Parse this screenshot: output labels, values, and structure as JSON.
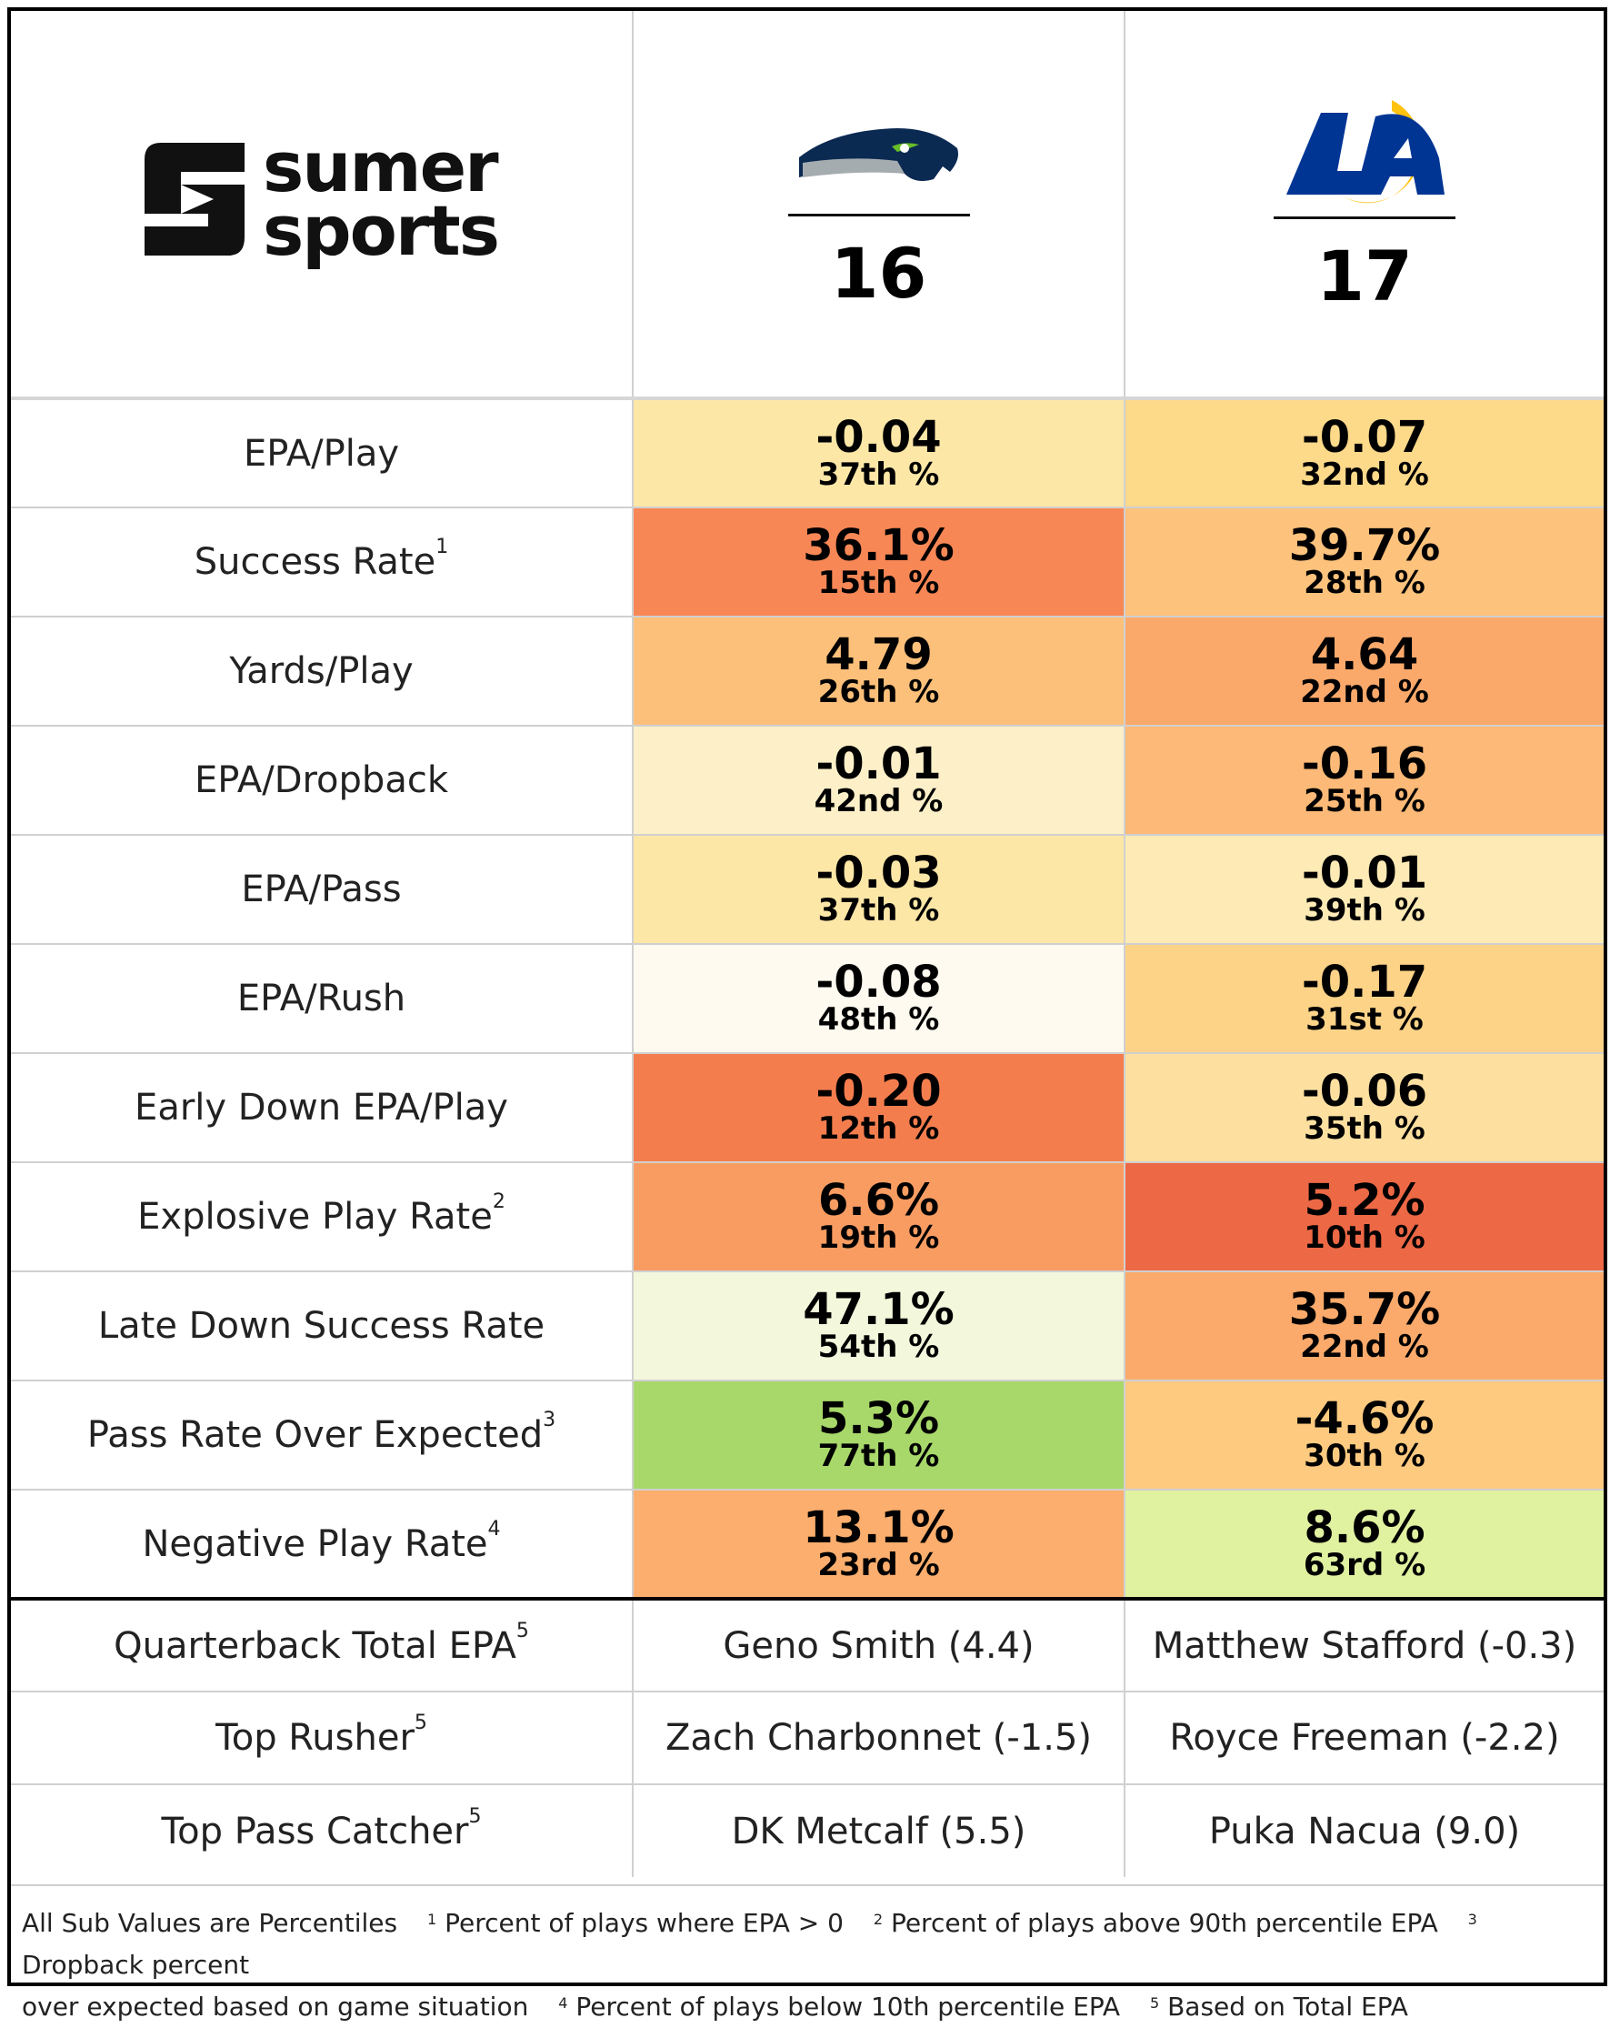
{
  "brand": {
    "line1": "sumer",
    "line2": "sports"
  },
  "teams": [
    {
      "icon": "seahawks-logo-icon",
      "score": "16"
    },
    {
      "icon": "rams-logo-icon",
      "score": "17"
    }
  ],
  "stats": [
    {
      "label": "EPA/Play",
      "sup": "",
      "a_val": "-0.04",
      "a_pct": "37th %",
      "a_color": "#fde7a7",
      "b_val": "-0.07",
      "b_pct": "32nd %",
      "b_color": "#fdd98a"
    },
    {
      "label": "Success Rate",
      "sup": "1",
      "a_val": "36.1%",
      "a_pct": "15th %",
      "a_color": "#f88756",
      "b_val": "39.7%",
      "b_pct": "28th %",
      "b_color": "#fdc27c"
    },
    {
      "label": "Yards/Play",
      "sup": "",
      "a_val": "4.79",
      "a_pct": "26th %",
      "a_color": "#fcc07a",
      "b_val": "4.64",
      "b_pct": "22nd %",
      "b_color": "#fba96b"
    },
    {
      "label": "EPA/Dropback",
      "sup": "",
      "a_val": "-0.01",
      "a_pct": "42nd %",
      "a_color": "#fdf0c9",
      "b_val": "-0.16",
      "b_pct": "25th %",
      "b_color": "#fcb977"
    },
    {
      "label": "EPA/Pass",
      "sup": "",
      "a_val": "-0.03",
      "a_pct": "37th %",
      "a_color": "#fde7a7",
      "b_val": "-0.01",
      "b_pct": "39th %",
      "b_color": "#fdeab5"
    },
    {
      "label": "EPA/Rush",
      "sup": "",
      "a_val": "-0.08",
      "a_pct": "48th %",
      "a_color": "#fffaf0",
      "b_val": "-0.17",
      "b_pct": "31st %",
      "b_color": "#fdd388"
    },
    {
      "label": "Early Down EPA/Play",
      "sup": "",
      "a_val": "-0.20",
      "a_pct": "12th %",
      "a_color": "#f47d4e",
      "b_val": "-0.06",
      "b_pct": "35th %",
      "b_color": "#fde0a0"
    },
    {
      "label": "Explosive Play Rate",
      "sup": "2",
      "a_val": "6.6%",
      "a_pct": "19th %",
      "a_color": "#f99c62",
      "b_val": "5.2%",
      "b_pct": "10th %",
      "b_color": "#ed6845"
    },
    {
      "label": "Late Down Success Rate",
      "sup": "",
      "a_val": "47.1%",
      "a_pct": "54th %",
      "a_color": "#f3f8dc",
      "b_val": "35.7%",
      "b_pct": "22nd %",
      "b_color": "#fbaa6b"
    },
    {
      "label": "Pass Rate Over Expected",
      "sup": "3",
      "a_val": "5.3%",
      "a_pct": "77th %",
      "a_color": "#a8d86a",
      "b_val": "-4.6%",
      "b_pct": "30th %",
      "b_color": "#fdca80"
    },
    {
      "label": "Negative Play Rate",
      "sup": "4",
      "a_val": "13.1%",
      "a_pct": "23rd %",
      "a_color": "#fbae6d",
      "b_val": "8.6%",
      "b_pct": "63rd %",
      "b_color": "#e0f1a0"
    }
  ],
  "players": [
    {
      "label": "Quarterback Total EPA",
      "sup": "5",
      "a": "Geno Smith (4.4)",
      "b": "Matthew Stafford (-0.3)"
    },
    {
      "label": "Top Rusher",
      "sup": "5",
      "a": "Zach Charbonnet (-1.5)",
      "b": "Royce Freeman (-2.2)"
    },
    {
      "label": "Top Pass Catcher",
      "sup": "5",
      "a": "DK Metcalf (5.5)",
      "b": "Puka Nacua (9.0)"
    }
  ],
  "footer": {
    "note": "All Sub Values are Percentiles",
    "f1": "Percent of plays where EPA > 0",
    "f2": "Percent of plays above 90th percentile EPA",
    "f3a": "Dropback percent",
    "f3b": "over expected based on game situation",
    "f4": "Percent of plays below 10th percentile EPA",
    "f5": "Based on Total EPA"
  }
}
